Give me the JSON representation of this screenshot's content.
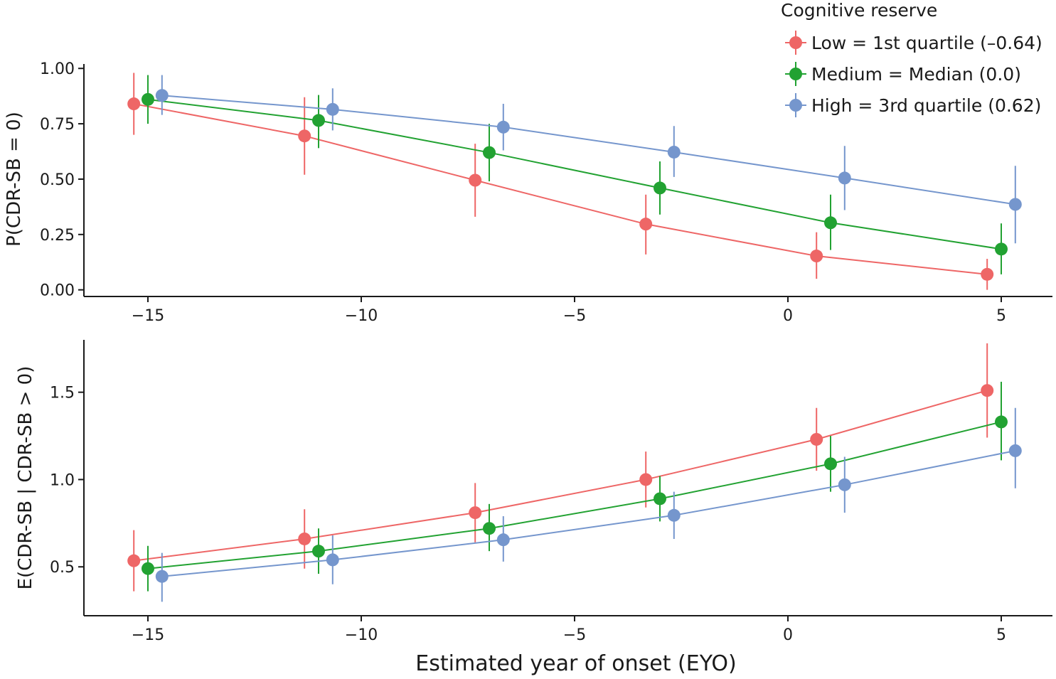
{
  "chart_data": {
    "type": "line",
    "xlabel": "Estimated year of onset (EYO)",
    "xlim": [
      -16.5,
      6.2
    ],
    "xticks": [
      -15,
      -10,
      -5,
      0,
      5
    ],
    "xtick_labels": [
      "−15",
      "−10",
      "−5",
      "0",
      "5"
    ],
    "legend": {
      "title": "Cognitive reserve",
      "placement": "top-right"
    },
    "series": [
      {
        "name": "Low = 1st quartile (–0.64)",
        "color": "#ee6666",
        "x_offset": -0.33
      },
      {
        "name": "Medium = Median (0.0)",
        "color": "#22a232",
        "x_offset": 0.0
      },
      {
        "name": "High = 3rd quartile (0.62)",
        "color": "#7596cd",
        "x_offset": 0.33
      }
    ],
    "panels": [
      {
        "ylabel": "P(CDR-SB = 0)",
        "ylim": [
          -0.03,
          1.02
        ],
        "yticks": [
          0.0,
          0.25,
          0.5,
          0.75,
          1.0
        ],
        "ytick_labels": [
          "0.00",
          "0.25",
          "0.50",
          "0.75",
          "1.00"
        ],
        "x": [
          -15,
          -11,
          -7,
          -3,
          1,
          5
        ],
        "values": [
          {
            "y": [
              0.84,
              0.695,
              0.495,
              0.297,
              0.153,
              0.07
            ],
            "lo": [
              0.7,
              0.52,
              0.33,
              0.16,
              0.05,
              0.0
            ],
            "hi": [
              0.98,
              0.87,
              0.66,
              0.43,
              0.26,
              0.14
            ]
          },
          {
            "y": [
              0.86,
              0.765,
              0.62,
              0.46,
              0.303,
              0.184
            ],
            "lo": [
              0.75,
              0.64,
              0.49,
              0.34,
              0.18,
              0.07
            ],
            "hi": [
              0.97,
              0.88,
              0.75,
              0.58,
              0.43,
              0.3
            ]
          },
          {
            "y": [
              0.878,
              0.815,
              0.735,
              0.622,
              0.505,
              0.386
            ],
            "lo": [
              0.79,
              0.72,
              0.63,
              0.51,
              0.36,
              0.21
            ],
            "hi": [
              0.97,
              0.91,
              0.84,
              0.74,
              0.65,
              0.56
            ]
          }
        ]
      },
      {
        "ylabel": "E(CDR-SB | CDR-SB > 0)",
        "ylim": [
          0.22,
          1.8
        ],
        "yticks": [
          0.5,
          1.0,
          1.5
        ],
        "ytick_labels": [
          "0.5",
          "1.0",
          "1.5"
        ],
        "x": [
          -15,
          -11,
          -7,
          -3,
          1,
          5
        ],
        "values": [
          {
            "y": [
              0.535,
              0.66,
              0.81,
              1.0,
              1.23,
              1.51
            ],
            "lo": [
              0.36,
              0.49,
              0.64,
              0.84,
              1.05,
              1.24
            ],
            "hi": [
              0.71,
              0.83,
              0.98,
              1.16,
              1.41,
              1.78
            ]
          },
          {
            "y": [
              0.49,
              0.59,
              0.72,
              0.89,
              1.09,
              1.33
            ],
            "lo": [
              0.36,
              0.46,
              0.59,
              0.76,
              0.93,
              1.11
            ],
            "hi": [
              0.62,
              0.72,
              0.86,
              1.02,
              1.25,
              1.56
            ]
          },
          {
            "y": [
              0.445,
              0.54,
              0.655,
              0.795,
              0.97,
              1.165
            ],
            "lo": [
              0.3,
              0.4,
              0.53,
              0.66,
              0.81,
              0.95
            ],
            "hi": [
              0.58,
              0.68,
              0.79,
              0.93,
              1.13,
              1.41
            ]
          }
        ]
      }
    ]
  }
}
